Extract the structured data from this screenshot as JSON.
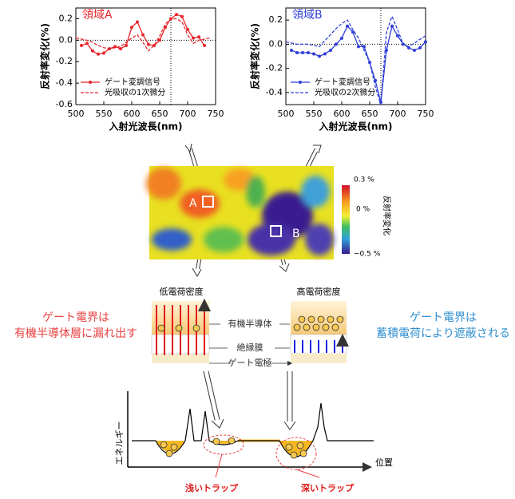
{
  "chart_data": [
    {
      "type": "line",
      "title": "領域A",
      "title_color": "#e8252a",
      "xlabel": "入射光波長(nm)",
      "ylabel": "反射率変化(%)",
      "x": [
        500,
        510,
        520,
        530,
        540,
        550,
        560,
        570,
        580,
        590,
        600,
        610,
        620,
        630,
        640,
        650,
        660,
        670,
        680,
        690,
        700,
        710,
        720,
        730,
        740,
        750
      ],
      "series": [
        {
          "name": "ゲート変調信号",
          "color": "#e8252a",
          "style": "solid",
          "markers": true,
          "values": [
            null,
            -0.05,
            -0.03,
            -0.1,
            -0.13,
            -0.12,
            -0.08,
            -0.06,
            -0.08,
            -0.05,
            0.12,
            0.17,
            0.05,
            -0.04,
            -0.05,
            0.0,
            0.12,
            0.2,
            0.24,
            0.22,
            0.1,
            0.02,
            0.03,
            -0.05,
            null,
            null
          ]
        },
        {
          "name": "光吸収の1次微分",
          "color": "#e8252a",
          "style": "dashed",
          "markers": false,
          "values": [
            0.02,
            0.01,
            0.0,
            -0.02,
            -0.05,
            -0.07,
            -0.08,
            -0.07,
            -0.06,
            -0.02,
            0.02,
            0.05,
            -0.02,
            -0.1,
            -0.05,
            0.04,
            0.15,
            0.2,
            0.2,
            0.17,
            0.05,
            -0.03,
            0.0,
            0.01,
            0.02,
            null
          ]
        }
      ],
      "xlim": [
        500,
        750
      ],
      "xticks": [
        500,
        550,
        600,
        650,
        700,
        750
      ],
      "ylim": [
        -0.6,
        0.3
      ],
      "yticks": [
        0.2,
        {
          "value": 0,
          "label": "0.0"
        },
        -0.2,
        -0.4,
        -0.6
      ],
      "vline": 670,
      "legend": "lower left"
    },
    {
      "type": "line",
      "title": "領域B",
      "title_color": "#2f3fd6",
      "xlabel": "入射光波長(nm)",
      "ylabel": "反射率変化(%)",
      "x": [
        500,
        510,
        520,
        530,
        540,
        550,
        560,
        570,
        580,
        590,
        600,
        610,
        620,
        630,
        640,
        650,
        660,
        670,
        680,
        690,
        700,
        710,
        720,
        730,
        740,
        750
      ],
      "series": [
        {
          "name": "ゲート変調信号",
          "color": "#2f3fd6",
          "style": "solid",
          "markers": true,
          "values": [
            null,
            -0.05,
            -0.07,
            -0.07,
            -0.07,
            -0.08,
            -0.1,
            -0.08,
            -0.05,
            0.0,
            0.05,
            0.15,
            0.1,
            -0.02,
            -0.02,
            -0.15,
            -0.3,
            -0.48,
            -0.05,
            0.15,
            0.07,
            0.0,
            -0.03,
            -0.05,
            -0.03,
            0.02
          ]
        },
        {
          "name": "光吸収の2次微分",
          "color": "#2f3fd6",
          "style": "dashed",
          "markers": false,
          "values": [
            0.02,
            0.01,
            0.0,
            0.0,
            0.0,
            -0.01,
            -0.02,
            0.03,
            0.08,
            0.13,
            0.17,
            0.2,
            0.12,
            0.05,
            -0.05,
            -0.15,
            -0.35,
            -0.5,
            0.1,
            0.23,
            0.12,
            0.0,
            -0.02,
            0.01,
            0.04,
            0.07
          ]
        }
      ],
      "xlim": [
        500,
        750
      ],
      "xticks": [
        500,
        550,
        600,
        650,
        700,
        750
      ],
      "ylim": [
        -0.5,
        0.3
      ],
      "yticks": [
        0.2,
        {
          "value": 0,
          "label": "0.0"
        },
        -0.2,
        -0.4
      ],
      "vline": 670,
      "legend": "lower left"
    }
  ],
  "heatmap": {
    "label_a": "A",
    "label_b": "B",
    "colorbar_label": "反射率変化",
    "colorbar_ticks": [
      "0.3 %",
      "0 %",
      "−0.5 %"
    ]
  },
  "device": {
    "low_title": "低電荷密度",
    "high_title": "高電荷密度",
    "layer_semiconductor": "有機半導体",
    "layer_insulator": "絶縁膜",
    "layer_gate": "ゲート電極"
  },
  "notes": {
    "left": [
      "ゲート電界は",
      "有機半導体層に漏れ出す"
    ],
    "right": [
      "ゲート電界は",
      "蓄積電荷により遮蔽される"
    ]
  },
  "energy": {
    "ylabel": "エネルギー",
    "xlabel": "位置",
    "shallow": "浅いトラップ",
    "deep": "深いトラップ"
  }
}
